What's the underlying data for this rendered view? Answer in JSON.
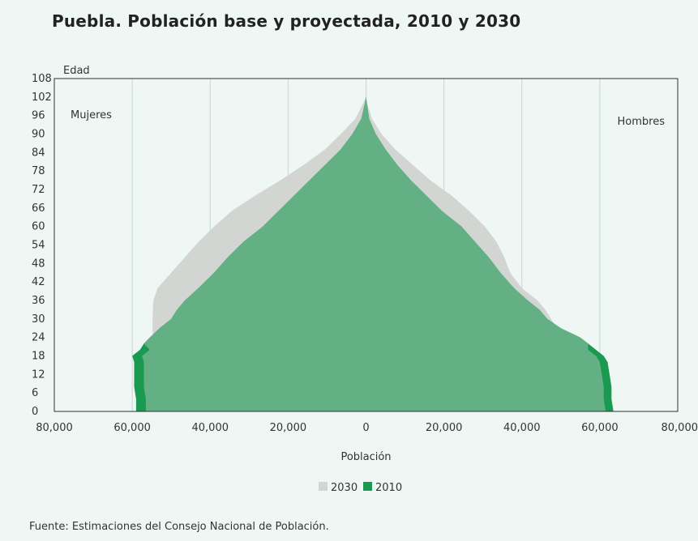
{
  "title": "Puebla. Población base y proyectada, 2010 y 2030",
  "footer": "Fuente: Estimaciones del Consejo Nacional de Población.",
  "chart_data": {
    "type": "area",
    "subtype": "population-pyramid",
    "ylabel": "Edad",
    "xlabel": "Población",
    "left_label": "Mujeres",
    "right_label": "Hombres",
    "x_ticks": [
      "80,000",
      "60,000",
      "40,000",
      "20,000",
      "0",
      "20,000",
      "40,000",
      "60,000",
      "80,000"
    ],
    "x_range": [
      -80000,
      80000
    ],
    "y_ticks": [
      0,
      6,
      12,
      18,
      24,
      30,
      36,
      42,
      48,
      54,
      60,
      66,
      72,
      78,
      84,
      90,
      96,
      102,
      108
    ],
    "y_range": [
      0,
      108
    ],
    "grid": true,
    "legend_position": "bottom",
    "ages": [
      0,
      4,
      8,
      12,
      16,
      18,
      20,
      22,
      24,
      27,
      30,
      33,
      36,
      40,
      45,
      50,
      55,
      60,
      65,
      70,
      75,
      80,
      85,
      90,
      95,
      100,
      102
    ],
    "series": [
      {
        "name": "2030",
        "color": "#d3d5d3",
        "women": [
          56000,
          56000,
          55700,
          55500,
          55300,
          55100,
          55000,
          54800,
          54700,
          54800,
          54800,
          54700,
          54600,
          53500,
          50000,
          46500,
          43000,
          39000,
          34500,
          28500,
          22000,
          16000,
          10500,
          6500,
          2700,
          700,
          0
        ],
        "men": [
          56500,
          56800,
          57000,
          57000,
          56900,
          56500,
          56000,
          54500,
          51500,
          49000,
          47500,
          46000,
          44000,
          40000,
          37000,
          35500,
          33500,
          30500,
          26500,
          22000,
          16500,
          12000,
          7500,
          4000,
          1500,
          300,
          0
        ]
      },
      {
        "name": "2010",
        "color": "#1a9a50",
        "women": [
          59000,
          59000,
          59500,
          59500,
          59500,
          60000,
          58000,
          57000,
          55500,
          53000,
          50000,
          48500,
          46500,
          43000,
          39000,
          35500,
          31500,
          26500,
          22500,
          18500,
          14500,
          10500,
          6500,
          3500,
          1200,
          300,
          0
        ],
        "men": [
          63500,
          63000,
          63000,
          62500,
          62000,
          61000,
          59000,
          57000,
          55000,
          50000,
          46500,
          44500,
          41500,
          38000,
          34500,
          31500,
          28000,
          24500,
          19500,
          15500,
          11500,
          8000,
          5000,
          2500,
          800,
          200,
          0
        ]
      }
    ]
  }
}
